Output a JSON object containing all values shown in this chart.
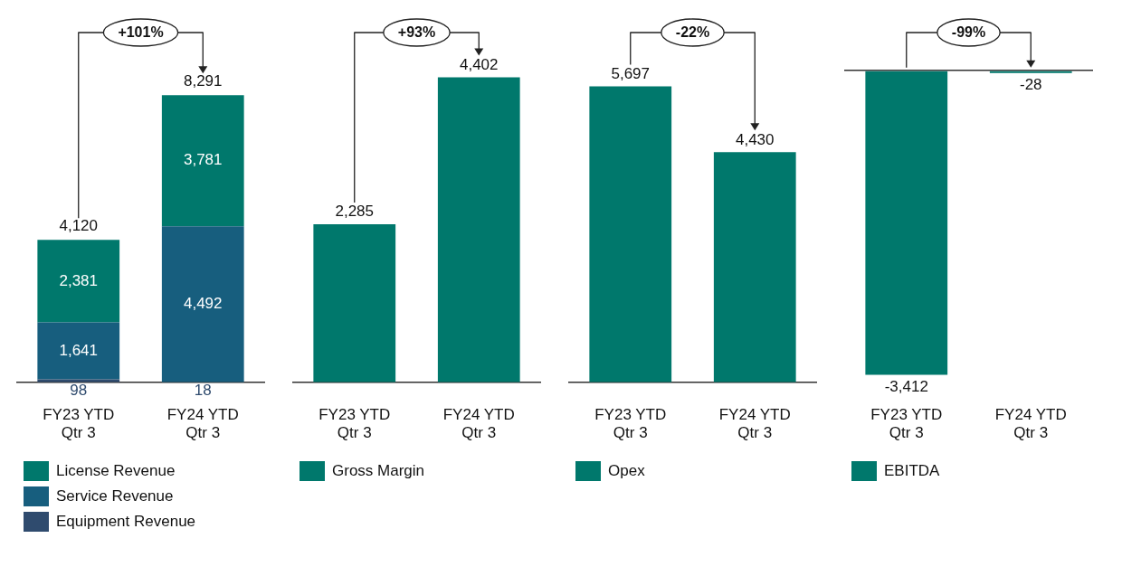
{
  "chart_data": [
    {
      "type": "bar",
      "stacked": true,
      "categories": [
        "FY23 YTD Qtr 3",
        "FY24 YTD Qtr 3"
      ],
      "series": [
        {
          "name": "Equipment Revenue",
          "color": "#2f4b6e",
          "values": [
            98,
            18
          ],
          "value_labels": [
            "98",
            "18"
          ]
        },
        {
          "name": "Service Revenue",
          "color": "#175e7e",
          "values": [
            1641,
            4492
          ],
          "value_labels": [
            "1,641",
            "4,492"
          ]
        },
        {
          "name": "License Revenue",
          "color": "#00786c",
          "values": [
            2381,
            3781
          ],
          "value_labels": [
            "2,381",
            "3,781"
          ]
        }
      ],
      "totals": [
        "4,120",
        "8,291"
      ],
      "annotations": [
        "+101%"
      ],
      "legend": "bottom",
      "grid": false
    },
    {
      "type": "bar",
      "categories": [
        "FY23 YTD Qtr 3",
        "FY24 YTD Qtr 3"
      ],
      "series": [
        {
          "name": "Gross Margin",
          "color": "#00786c",
          "values": [
            2285,
            4402
          ],
          "value_labels": [
            "2,285",
            "4,402"
          ]
        }
      ],
      "annotations": [
        "+93%"
      ],
      "legend": "bottom",
      "grid": false
    },
    {
      "type": "bar",
      "categories": [
        "FY23 YTD Qtr 3",
        "FY24 YTD Qtr 3"
      ],
      "series": [
        {
          "name": "Opex",
          "color": "#00786c",
          "values": [
            5697,
            4430
          ],
          "value_labels": [
            "5,697",
            "4,430"
          ]
        }
      ],
      "annotations": [
        "-22%"
      ],
      "legend": "bottom",
      "grid": false
    },
    {
      "type": "bar",
      "categories": [
        "FY23 YTD Qtr 3",
        "FY24 YTD Qtr 3"
      ],
      "series": [
        {
          "name": "EBITDA",
          "color": "#00786c",
          "values": [
            -3412,
            -28
          ],
          "value_labels": [
            "-3,412",
            "-28"
          ]
        }
      ],
      "annotations": [
        "-99%"
      ],
      "legend": "bottom",
      "grid": false
    }
  ]
}
